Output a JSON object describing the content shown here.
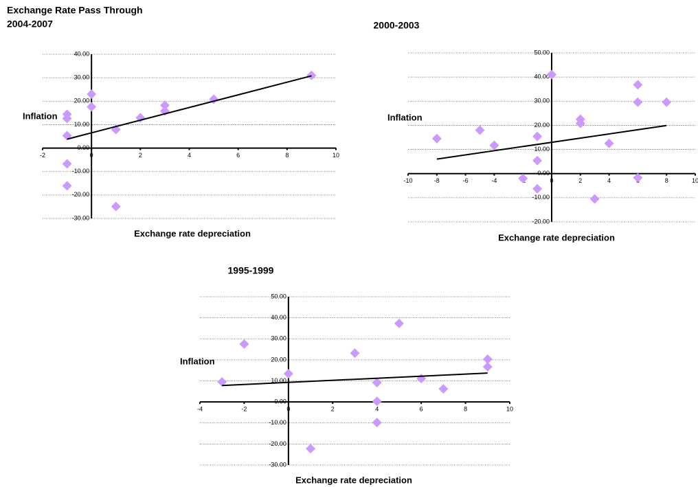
{
  "chart_data": [
    {
      "type": "scatter",
      "suptitle": "Exchange Rate Pass Through",
      "title": "2004-2007",
      "xlabel": "Exchange rate depreciation",
      "ylabel": "Inflation",
      "color": "#cc99ff",
      "grid": true,
      "xlim": [
        -2,
        10
      ],
      "xticks": [
        -2,
        0,
        2,
        4,
        6,
        8,
        10
      ],
      "ylim": [
        -30,
        40
      ],
      "yticks": [
        {
          "value": -30,
          "label": "-30.00"
        },
        {
          "value": -20,
          "label": "-20.00"
        },
        {
          "value": -10,
          "label": "-10.00"
        },
        {
          "value": 0,
          "label": "0.00"
        },
        {
          "value": 10,
          "label": "10.00"
        },
        {
          "value": 20,
          "label": "20.00"
        },
        {
          "value": 30,
          "label": "30.00"
        },
        {
          "value": 40,
          "label": "40.00"
        }
      ],
      "x": [
        9,
        0,
        0,
        -1,
        -1,
        -1,
        -1,
        -1,
        1,
        1,
        2,
        3,
        3,
        5
      ],
      "values": [
        31,
        23,
        17.6,
        14.4,
        12.6,
        5.3,
        -6.7,
        -16.1,
        7.9,
        -24.9,
        12.9,
        18.2,
        15.8,
        20.8
      ],
      "trend": {
        "x": [
          -1,
          9
        ],
        "values": [
          3.8,
          30.8
        ]
      }
    },
    {
      "type": "scatter",
      "title": "2000-2003",
      "xlabel": "Exchange rate depreciation",
      "ylabel": "Inflation",
      "color": "#cc99ff",
      "grid": true,
      "xlim": [
        -10,
        10
      ],
      "xticks": [
        -10,
        -8,
        -6,
        -4,
        -2,
        0,
        2,
        4,
        6,
        8,
        10
      ],
      "ylim": [
        -20,
        50
      ],
      "yticks": [
        {
          "value": -20,
          "label": "-20.00"
        },
        {
          "value": -10,
          "label": "-10.00"
        },
        {
          "value": 0,
          "label": "0.00"
        },
        {
          "value": 10,
          "label": "10.00"
        },
        {
          "value": 20,
          "label": "20.00"
        },
        {
          "value": 30,
          "label": "30.00"
        },
        {
          "value": 40,
          "label": "40.00"
        },
        {
          "value": 50,
          "label": "50.00"
        }
      ],
      "x": [
        0,
        6,
        6,
        8,
        2,
        2,
        -5,
        -8,
        -4,
        -1,
        -1,
        -2,
        -1,
        4,
        3,
        6
      ],
      "values": [
        41,
        36.8,
        29.6,
        29.6,
        22.5,
        20.8,
        18,
        14.5,
        11.7,
        15.4,
        5.4,
        -2,
        -6.3,
        12.5,
        -10.5,
        -1.7
      ],
      "trend": {
        "x": [
          -8,
          8
        ],
        "values": [
          6.0,
          19.9
        ]
      }
    },
    {
      "type": "scatter",
      "title": "1995-1999",
      "xlabel": "Exchange rate depreciation",
      "ylabel": "Inflation",
      "color": "#cc99ff",
      "grid": true,
      "xlim": [
        -4,
        10
      ],
      "xticks": [
        -4,
        -2,
        0,
        2,
        4,
        6,
        8,
        10
      ],
      "ylim": [
        -30,
        50
      ],
      "yticks": [
        {
          "value": -30,
          "label": "-30.00"
        },
        {
          "value": -20,
          "label": "-20.00"
        },
        {
          "value": -10,
          "label": "-10.00"
        },
        {
          "value": 0,
          "label": "0.00"
        },
        {
          "value": 10,
          "label": "10.00"
        },
        {
          "value": 20,
          "label": "20.00"
        },
        {
          "value": 30,
          "label": "30.00"
        },
        {
          "value": 40,
          "label": "40.00"
        },
        {
          "value": 50,
          "label": "50.00"
        }
      ],
      "x": [
        5,
        -2,
        3,
        9,
        9,
        -3,
        0,
        4,
        4,
        4,
        6,
        7,
        1
      ],
      "values": [
        37.3,
        27.5,
        23.2,
        20.3,
        16.7,
        9.5,
        13.4,
        9.2,
        0.3,
        -9.8,
        11.1,
        6.2,
        -22.2
      ],
      "trend": {
        "x": [
          -3,
          9
        ],
        "values": [
          7.8,
          13.7
        ]
      }
    }
  ]
}
